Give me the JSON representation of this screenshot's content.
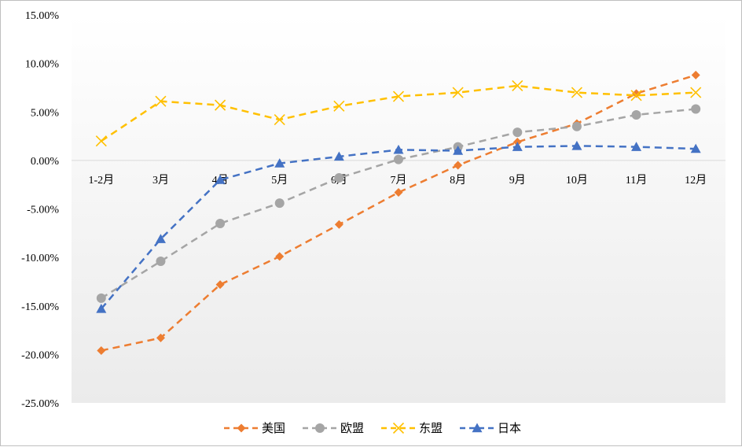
{
  "chart_data": {
    "type": "line",
    "title": "",
    "xlabel": "",
    "ylabel": "",
    "categories": [
      "1-2月",
      "3月",
      "4月",
      "5月",
      "6月",
      "7月",
      "8月",
      "9月",
      "10月",
      "11月",
      "12月"
    ],
    "ylim": [
      -25,
      15
    ],
    "y_ticks": [
      "15.00%",
      "10.00%",
      "5.00%",
      "0.00%",
      "-5.00%",
      "-10.00%",
      "-15.00%",
      "-20.00%",
      "-25.00%"
    ],
    "y_tick_values": [
      15,
      10,
      5,
      0,
      -5,
      -10,
      -15,
      -20,
      -25
    ],
    "grid": false,
    "legend_position": "bottom",
    "series": [
      {
        "name": "美国",
        "color": "#ED7D31",
        "marker": "diamond",
        "values": [
          -19.6,
          -18.3,
          -12.8,
          -9.9,
          -6.6,
          -3.3,
          -0.5,
          1.9,
          3.8,
          6.9,
          8.8
        ]
      },
      {
        "name": "欧盟",
        "color": "#A5A5A5",
        "marker": "circle",
        "values": [
          -14.2,
          -10.4,
          -6.5,
          -4.4,
          -1.8,
          0.1,
          1.4,
          2.9,
          3.5,
          4.7,
          5.3
        ]
      },
      {
        "name": "东盟",
        "color": "#FFC000",
        "marker": "x",
        "values": [
          2.0,
          6.1,
          5.7,
          4.2,
          5.6,
          6.6,
          7.0,
          7.7,
          7.0,
          6.7,
          7.0
        ]
      },
      {
        "name": "日本",
        "color": "#4472C4",
        "marker": "triangle",
        "values": [
          -15.3,
          -8.1,
          -2.0,
          -0.3,
          0.4,
          1.1,
          1.0,
          1.4,
          1.5,
          1.4,
          1.2
        ]
      }
    ]
  }
}
